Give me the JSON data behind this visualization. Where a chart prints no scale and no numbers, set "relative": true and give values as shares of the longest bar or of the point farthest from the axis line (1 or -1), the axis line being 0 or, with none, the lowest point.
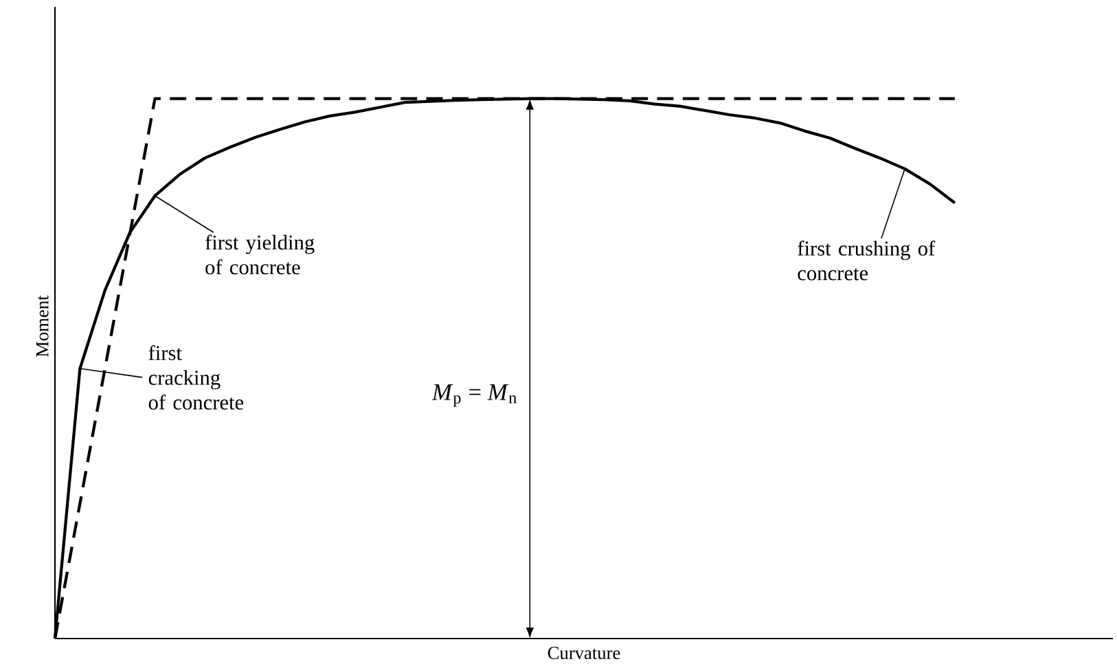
{
  "chart_data": {
    "type": "line",
    "relative": true,
    "xlabel": "Curvature",
    "ylabel": "Moment",
    "tick_labels": false,
    "categories": [
      null,
      null,
      null,
      null,
      null,
      null,
      null,
      null,
      null,
      null,
      null,
      null,
      null,
      null,
      null,
      null,
      null,
      null,
      null,
      null,
      null,
      null,
      null,
      null,
      null,
      null,
      null,
      null,
      null,
      null,
      null,
      null,
      null,
      null,
      null,
      null,
      null
    ],
    "series": [
      {
        "color": "#000000",
        "line_style": "dashed",
        "values": [
          0,
          0.25,
          0.5,
          0.75,
          1,
          1,
          1,
          1,
          1,
          1,
          1,
          1,
          1,
          1,
          1,
          1,
          1,
          1,
          1,
          1,
          1,
          1,
          1,
          1,
          1,
          1,
          1,
          1,
          1,
          1,
          1,
          1,
          1,
          1,
          1,
          1,
          1
        ]
      },
      {
        "color": "#000000",
        "line_style": "solid",
        "values": [
          0,
          0.5,
          0.645,
          0.752,
          0.82,
          0.86,
          0.89,
          0.91,
          0.928,
          0.943,
          0.957,
          0.968,
          0.975,
          0.984,
          0.993,
          0.995,
          0.997,
          0.998,
          0.999,
          1,
          1,
          0.999,
          0.998,
          0.996,
          0.99,
          0.986,
          0.978,
          0.97,
          0.964,
          0.955,
          0.94,
          0.927,
          0.908,
          0.89,
          0.87,
          0.842,
          0.807
        ]
      }
    ],
    "annotations": [
      "first yielding of concrete",
      "first crushing of concrete",
      "first cracking of concrete",
      "*M*$_{p}$ = *M*$_{n}$"
    ]
  }
}
